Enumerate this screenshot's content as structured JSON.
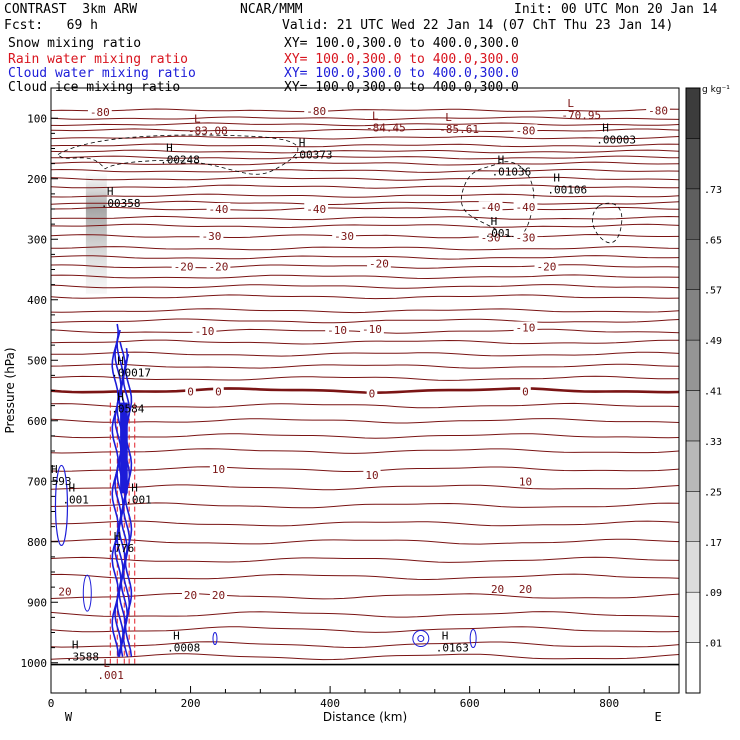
{
  "header": {
    "model": "CONTRAST  3km ARW",
    "org": "NCAR/MMM",
    "init": "Init: 00 UTC Mon 20 Jan 14",
    "fcst": "Fcst:   69 h",
    "valid": "Valid: 21 UTC Wed 22 Jan 14 (07 ChT Thu 23 Jan 14)",
    "fields": [
      {
        "name": "Snow mixing ratio",
        "xy": "XY= 100.0,300.0 to 400.0,300.0",
        "color": "#000000"
      },
      {
        "name": "Rain water mixing ratio",
        "xy": "XY= 100.0,300.0 to 400.0,300.0",
        "color": "#d8141e"
      },
      {
        "name": "Cloud water mixing ratio",
        "xy": "XY= 100.0,300.0 to 400.0,300.0",
        "color": "#1c1cd8"
      },
      {
        "name": "Cloud ice mixing ratio",
        "xy": "XY= 100.0,300.0 to 400.0,300.0",
        "color": "#000000"
      }
    ]
  },
  "chart_data": {
    "type": "contour",
    "xlabel": "Distance (km)",
    "ylabel": "Pressure (hPa)",
    "xlim": [
      0,
      900
    ],
    "ylim": [
      1050,
      50
    ],
    "xticks": [
      0,
      200,
      400,
      600,
      800
    ],
    "yticks": [
      100,
      200,
      300,
      400,
      500,
      600,
      700,
      800,
      900,
      1000
    ],
    "x_end_labels": {
      "left": "W",
      "right": "E"
    },
    "colorbar": {
      "unit": "g kg⁻¹",
      "tick_labels": [
        ".01",
        ".09",
        ".17",
        ".25",
        ".33",
        ".41",
        ".49",
        ".57",
        ".65",
        ".73"
      ],
      "gray_start": "#ffffff",
      "gray_end": "#3c3c3c"
    },
    "temperature_contours": {
      "color": "#7a1414",
      "levels": [
        {
          "value": "-80",
          "p": 87,
          "labels": [
            [
              70,
              90
            ],
            [
              380,
              88
            ],
            [
              870,
              87
            ]
          ]
        },
        {
          "value": "-80",
          "p": 120,
          "labels": [
            [
              680,
              120
            ]
          ]
        },
        {
          "value": "-40",
          "p": 250,
          "labels": [
            [
              240,
              250
            ],
            [
              380,
              250
            ],
            [
              630,
              247
            ],
            [
              680,
              247
            ]
          ]
        },
        {
          "value": "-30",
          "p": 295,
          "labels": [
            [
              230,
              295
            ],
            [
              420,
              295
            ],
            [
              630,
              297
            ],
            [
              680,
              297
            ]
          ]
        },
        {
          "value": "-20",
          "p": 345,
          "labels": [
            [
              190,
              345
            ],
            [
              240,
              345
            ],
            [
              470,
              340
            ],
            [
              710,
              345
            ]
          ]
        },
        {
          "value": "-10",
          "p": 452,
          "labels": [
            [
              220,
              452
            ],
            [
              410,
              450
            ],
            [
              460,
              448
            ],
            [
              680,
              446
            ]
          ]
        },
        {
          "value": "0",
          "p": 550,
          "labels": [
            [
              200,
              552
            ],
            [
              240,
              552
            ],
            [
              460,
              555
            ],
            [
              680,
              552
            ]
          ]
        },
        {
          "value": "10",
          "p": 680,
          "labels": [
            [
              240,
              680
            ],
            [
              460,
              690
            ],
            [
              680,
              700
            ]
          ]
        },
        {
          "value": "20",
          "p": 890,
          "labels": [
            [
              20,
              882
            ],
            [
              200,
              888
            ],
            [
              240,
              888
            ],
            [
              640,
              878
            ],
            [
              680,
              878
            ]
          ]
        }
      ],
      "unlabeled_pressures": [
        100,
        110,
        132,
        145,
        155,
        165,
        175,
        187,
        200,
        213,
        228,
        240,
        265,
        278,
        315,
        330,
        362,
        378,
        395,
        418,
        435,
        470,
        490,
        510,
        530,
        575,
        600,
        625,
        650,
        710,
        740,
        770,
        800,
        830,
        858,
        920,
        945,
        970,
        990
      ],
      "bold_level_pressure": 550
    },
    "extrema_labels": [
      {
        "type": "L",
        "value": "-83.08",
        "x": 205,
        "p": 110
      },
      {
        "type": "L",
        "value": "-84.45",
        "x": 460,
        "p": 105
      },
      {
        "type": "L",
        "value": "-85.61",
        "x": 565,
        "p": 108
      },
      {
        "type": "L",
        "value": "-70.95",
        "x": 740,
        "p": 85
      },
      {
        "type": "H",
        "value": ".00003",
        "x": 790,
        "p": 125
      },
      {
        "type": "H",
        "value": ".00248",
        "x": 165,
        "p": 158
      },
      {
        "type": "H",
        "value": ".00373",
        "x": 355,
        "p": 150
      },
      {
        "type": "H",
        "value": ".01036",
        "x": 640,
        "p": 178
      },
      {
        "type": "H",
        "value": ".00106",
        "x": 720,
        "p": 208
      },
      {
        "type": "H",
        "value": ".00358",
        "x": 80,
        "p": 230
      },
      {
        "type": "H",
        "value": ".001",
        "x": 630,
        "p": 280
      },
      {
        "type": "H",
        "value": ".00017",
        "x": 95,
        "p": 510
      },
      {
        "type": "H",
        "value": ".0584",
        "x": 95,
        "p": 570
      },
      {
        "type": "H",
        "value": ".593",
        "x": 0,
        "p": 690
      },
      {
        "type": "H",
        "value": ".001",
        "x": 25,
        "p": 720
      },
      {
        "type": "H",
        "value": ".001",
        "x": 115,
        "p": 720
      },
      {
        "type": "H",
        "value": ".776",
        "x": 90,
        "p": 800
      },
      {
        "type": "H",
        "value": ".3588",
        "x": 30,
        "p": 980
      },
      {
        "type": "H",
        "value": ".0008",
        "x": 175,
        "p": 965
      },
      {
        "type": "H",
        "value": ".0163",
        "x": 560,
        "p": 965
      },
      {
        "type": "L",
        "value": ".001",
        "x": 75,
        "p": 1010
      }
    ]
  }
}
